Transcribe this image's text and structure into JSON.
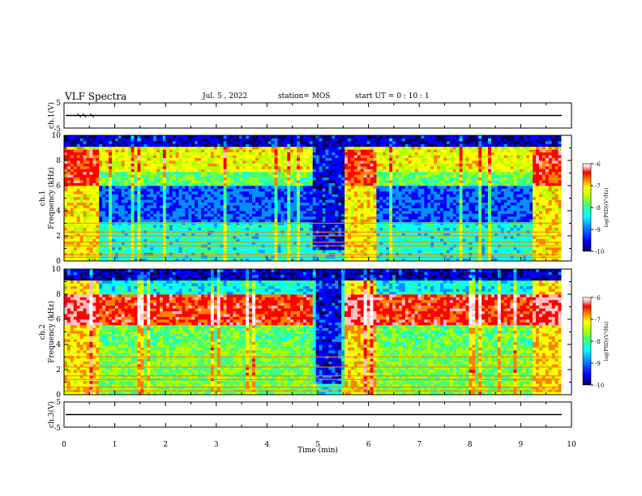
{
  "header": {
    "title": "VLF Spectra",
    "date": "Jul. 5 , 2022",
    "station": "station= MOS",
    "start": "start UT = 0 : 10 : 1"
  },
  "colors": {
    "colormap": [
      "#00005a",
      "#0000ff",
      "#0090ff",
      "#00ffff",
      "#40ff80",
      "#b0ff00",
      "#ffff00",
      "#ff8000",
      "#ff0000",
      "#ffc0c0",
      "#ffffff"
    ]
  },
  "chart_data": [
    {
      "type": "line",
      "name": "ch1-waveform",
      "ylabel": "ch.1(V)",
      "ylim": [
        -5,
        5
      ],
      "yticks": [
        "5",
        "-5"
      ],
      "xlim": [
        0,
        10
      ],
      "level": 0,
      "description_events_min": [
        0.3,
        0.4,
        0.55
      ]
    },
    {
      "type": "heatmap",
      "name": "ch1-spectrogram",
      "ylabel": "ch.1 Frequency (kHz)",
      "ylim": [
        0,
        10
      ],
      "yticks": [
        "0",
        "2",
        "4",
        "6",
        "8",
        "10"
      ],
      "xlim": [
        0,
        10
      ],
      "colorbar": {
        "label": "log(PSD)(V²/Hz)",
        "range": [
          -10,
          -6
        ],
        "ticks": [
          "-6",
          "-7",
          "-8",
          "-9",
          "-10"
        ]
      },
      "segments_min": [
        {
          "from": 0.0,
          "to": 0.68,
          "state": "strong"
        },
        {
          "from": 0.68,
          "to": 4.9,
          "state": "normal"
        },
        {
          "from": 4.9,
          "to": 5.5,
          "state": "dropout"
        },
        {
          "from": 5.5,
          "to": 6.1,
          "state": "strong"
        },
        {
          "from": 6.1,
          "to": 9.2,
          "state": "normal"
        },
        {
          "from": 9.2,
          "to": 9.8,
          "state": "strong"
        }
      ],
      "lines_khz": [
        0.3,
        0.5,
        1.2,
        1.5,
        2.0,
        2.3,
        3.0
      ]
    },
    {
      "type": "heatmap",
      "name": "ch2-spectrogram",
      "ylabel": "ch.2 Frequency (kHz)",
      "ylim": [
        0,
        10
      ],
      "yticks": [
        "0",
        "2",
        "4",
        "6",
        "8",
        "10"
      ],
      "xlim": [
        0,
        10
      ],
      "colorbar": {
        "label": "log(PSD)(V²/Hz)",
        "range": [
          -10,
          -6
        ],
        "ticks": [
          "-6",
          "-7",
          "-8",
          "-9",
          "-10"
        ]
      },
      "segments_min": [
        {
          "from": 0.0,
          "to": 0.68,
          "state": "strong"
        },
        {
          "from": 0.68,
          "to": 4.9,
          "state": "normal"
        },
        {
          "from": 4.9,
          "to": 5.5,
          "state": "dropout"
        },
        {
          "from": 5.5,
          "to": 6.1,
          "state": "strong"
        },
        {
          "from": 6.1,
          "to": 9.2,
          "state": "normal"
        },
        {
          "from": 9.2,
          "to": 9.8,
          "state": "strong"
        }
      ],
      "lines_khz": [
        0.3,
        0.6,
        1.2,
        1.5,
        2.2,
        3.0
      ]
    },
    {
      "type": "line",
      "name": "ch3-waveform",
      "ylabel": "ch.3(V)",
      "ylim": [
        -5,
        5
      ],
      "yticks": [
        "5",
        "-5"
      ],
      "xlim": [
        0,
        10
      ],
      "level": 0
    }
  ],
  "xaxis": {
    "label": "Time (min)",
    "ticks": [
      "0",
      "1",
      "2",
      "3",
      "4",
      "5",
      "6",
      "7",
      "8",
      "9",
      "10"
    ]
  }
}
